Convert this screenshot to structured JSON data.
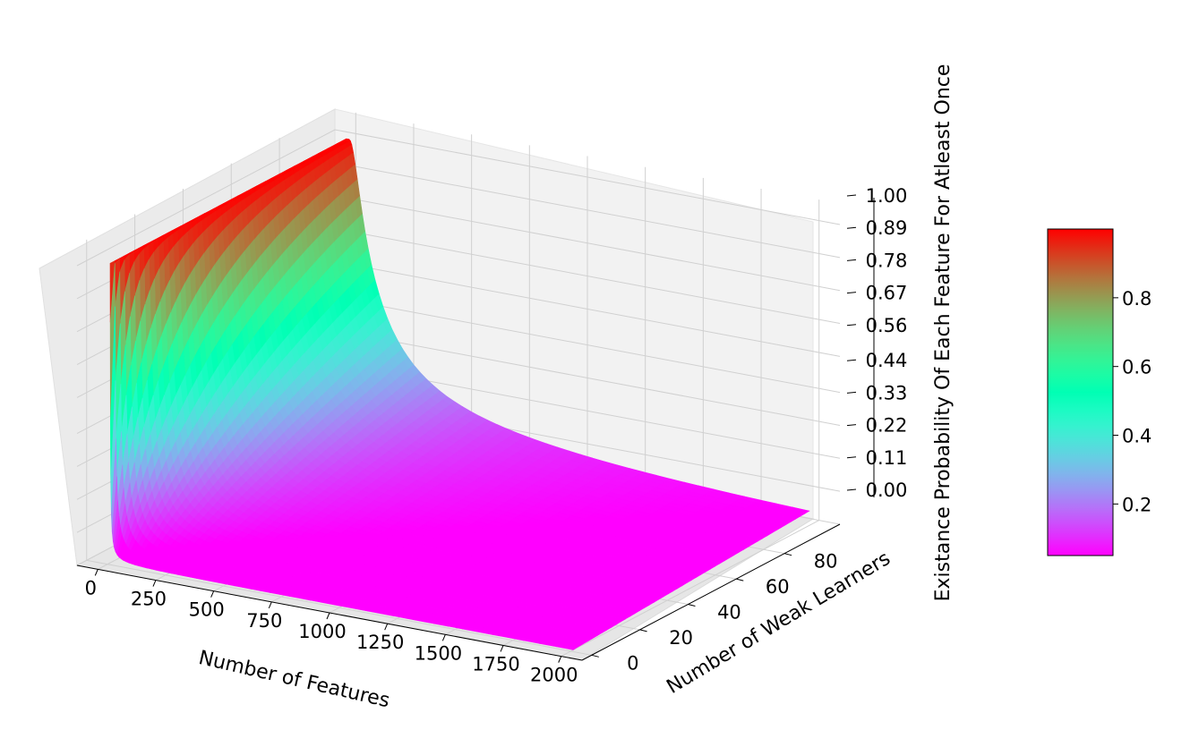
{
  "chart_data": {
    "type": "surface3d",
    "function": "1 - (1 - 1/features)^weak_learners",
    "xlabel": "Number of Features",
    "ylabel": "Number of Weak Learners",
    "zlabel": "Existance Probability Of Each Feature For Atleast Once",
    "x_range": [
      1,
      2000
    ],
    "y_range": [
      1,
      99
    ],
    "z_range": [
      0,
      1
    ],
    "x_ticks": [
      "0",
      "250",
      "500",
      "750",
      "1000",
      "1250",
      "1500",
      "1750",
      "2000"
    ],
    "y_ticks": [
      "0",
      "20",
      "40",
      "60",
      "80"
    ],
    "z_ticks": [
      "0.00",
      "0.11",
      "0.22",
      "0.33",
      "0.44",
      "0.56",
      "0.67",
      "0.78",
      "0.89",
      "1.00"
    ],
    "colormap": "rainbow",
    "grid": true,
    "colorbar": {
      "ticks": [
        "0.2",
        "0.4",
        "0.6",
        "0.8"
      ],
      "tick_values": [
        0.2,
        0.4,
        0.6,
        0.8
      ],
      "range": [
        0.05,
        1.0
      ]
    },
    "sample_points": [
      {
        "x": 1,
        "y": 1,
        "z": 1.0
      },
      {
        "x": 2000,
        "y": 1,
        "z": 0.0005
      },
      {
        "x": 2000,
        "y": 99,
        "z": 0.048
      },
      {
        "x": 100,
        "y": 99,
        "z": 0.63
      }
    ]
  }
}
